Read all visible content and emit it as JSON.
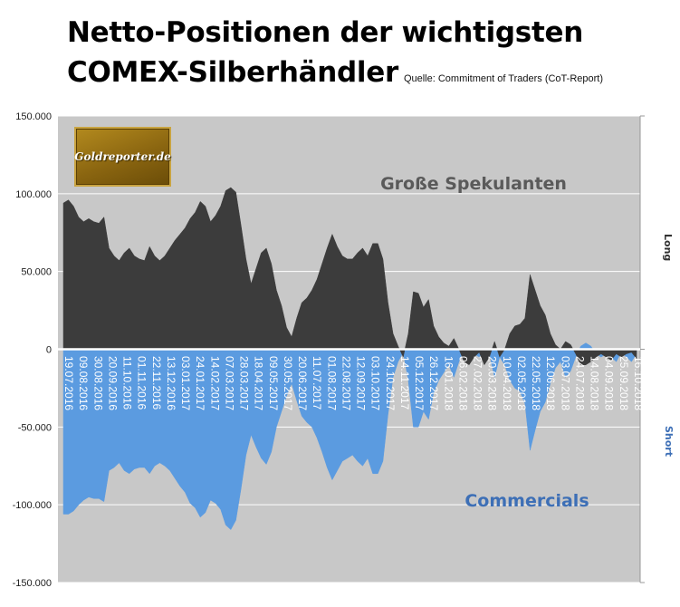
{
  "title": {
    "line1": "Netto-Positionen der wichtigsten",
    "line2": "COMEX-Silberhändler",
    "source": "Quelle: Commitment of Traders (CoT-Report)"
  },
  "logo": {
    "text": "Goldreporter.de"
  },
  "side_labels": {
    "long": "Long",
    "short": "Short"
  },
  "colors": {
    "speculators": "#3c3c3c",
    "commercials": "#5b9be0",
    "plot_bg": "#c8c8c8",
    "axis_text": "#222222",
    "spec_label": "#5a5a5a",
    "comm_label": "#3d6fb6"
  },
  "chart_data": {
    "type": "area",
    "title": "Netto-Positionen der wichtigsten COMEX-Silberhändler",
    "ylim": [
      -150000,
      150000
    ],
    "yticks": [
      150000,
      100000,
      50000,
      0,
      -50000,
      -100000,
      -150000
    ],
    "ytick_labels": [
      "150.000",
      "100.000",
      "50.000",
      "0",
      "-50.000",
      "-100.000",
      "-150.000"
    ],
    "grid": true,
    "x_tick_labels": [
      "19.07.2016",
      "09.08.2016",
      "30.08.2016",
      "20.09.2016",
      "11.10.2016",
      "01.11.2016",
      "22.11.2016",
      "13.12.2016",
      "03.01.2017",
      "24.01.2017",
      "14.02.2017",
      "07.03.2017",
      "28.03.2017",
      "18.04.2017",
      "09.05.2017",
      "30.05.2017",
      "20.06.2017",
      "11.07.2017",
      "01.08.2017",
      "22.08.2017",
      "12.09.2017",
      "03.10.2017",
      "24.10.2017",
      "14.11.2017",
      "05.12.2017",
      "26.12.2017",
      "16.01.2018",
      "06.02.2018",
      "27.02.2018",
      "20.03.2018",
      "10.04.2018",
      "02.05.2018",
      "22.05.2018",
      "12.06.2018",
      "03.07.2018",
      "24.07.2018",
      "14.08.2018",
      "04.09.2018",
      "25.09.2018",
      "16.10.2018"
    ],
    "series": [
      {
        "name": "Große Spekulanten",
        "values": [
          94000,
          96000,
          92000,
          85000,
          82000,
          84000,
          82000,
          81000,
          85000,
          65000,
          60000,
          57000,
          62000,
          65000,
          60000,
          58000,
          57000,
          66000,
          60000,
          57000,
          60000,
          65000,
          70000,
          74000,
          78000,
          84000,
          88000,
          95000,
          92000,
          82000,
          86000,
          92000,
          102000,
          104000,
          101000,
          80000,
          58000,
          42000,
          52000,
          62000,
          65000,
          55000,
          38000,
          28000,
          14000,
          8000,
          20000,
          30000,
          33000,
          38000,
          45000,
          55000,
          65000,
          74000,
          66000,
          60000,
          58000,
          58000,
          62000,
          65000,
          60000,
          68000,
          68000,
          58000,
          30000,
          10000,
          2000,
          -5000,
          10000,
          37000,
          36000,
          27000,
          32000,
          15000,
          8000,
          4000,
          2000,
          7000,
          0,
          -8000,
          -10000,
          -5000,
          -2000,
          -10000,
          -5000,
          5000,
          -5000,
          0,
          10000,
          15000,
          16000,
          20000,
          48000,
          38000,
          28000,
          22000,
          10000,
          3000,
          0,
          5000,
          3000,
          -3000,
          -10000,
          -10000,
          -8000,
          -5000,
          -3000,
          -5000,
          -7000,
          -3000,
          -5000,
          -3000,
          -2000,
          -6000
        ]
      },
      {
        "name": "Commercials",
        "values": [
          -106000,
          -106000,
          -104000,
          -100000,
          -97000,
          -95000,
          -96000,
          -96000,
          -98000,
          -78000,
          -76000,
          -73000,
          -78000,
          -80000,
          -77000,
          -76000,
          -76000,
          -80000,
          -75000,
          -73000,
          -75000,
          -78000,
          -83000,
          -88000,
          -92000,
          -99000,
          -102000,
          -108000,
          -105000,
          -97000,
          -99000,
          -103000,
          -113000,
          -116000,
          -110000,
          -90000,
          -68000,
          -55000,
          -63000,
          -70000,
          -74000,
          -66000,
          -50000,
          -40000,
          -30000,
          -22000,
          -33000,
          -43000,
          -47000,
          -50000,
          -57000,
          -66000,
          -76000,
          -84000,
          -78000,
          -72000,
          -70000,
          -68000,
          -72000,
          -75000,
          -70000,
          -80000,
          -80000,
          -72000,
          -42000,
          -18000,
          -8000,
          -2000,
          -20000,
          -50000,
          -50000,
          -40000,
          -45000,
          -28000,
          -20000,
          -15000,
          -10000,
          -18000,
          -8000,
          0,
          0,
          -3000,
          -5000,
          0,
          -3000,
          -18000,
          -5000,
          -10000,
          -20000,
          -25000,
          -27000,
          -35000,
          -65000,
          -52000,
          -40000,
          -34000,
          -22000,
          -12000,
          -8000,
          -18000,
          -14000,
          -5000,
          2000,
          4000,
          2000,
          -3000,
          -5000,
          -3000,
          -5000,
          -8000,
          -2000,
          -5000,
          -8000,
          -3000
        ]
      }
    ]
  }
}
